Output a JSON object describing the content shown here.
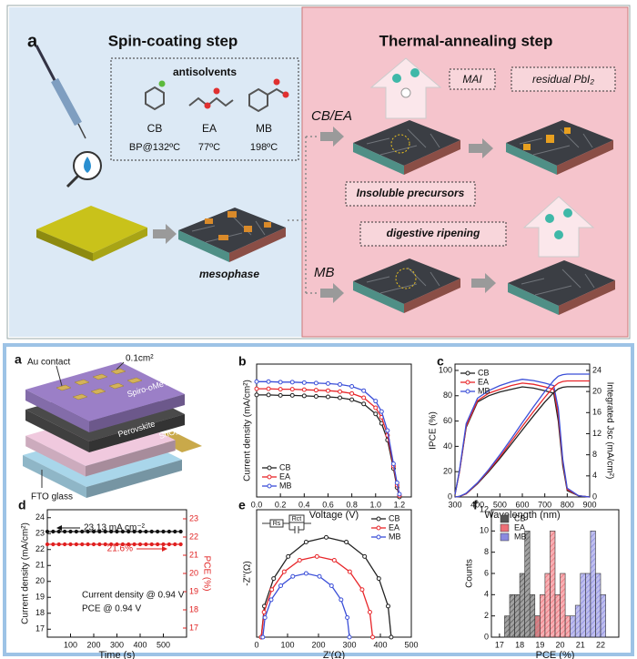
{
  "schematic": {
    "panel": "a",
    "left_title": "Spin-coating step",
    "right_title": "Thermal-annealing step",
    "antisolvents": {
      "title": "antisolvents",
      "names": [
        "CB",
        "EA",
        "MB"
      ],
      "boiling_points": [
        "BP@132ºC",
        "77ºC",
        "198ºC"
      ]
    },
    "mesophase": "mesophase",
    "routes": [
      "CB/EA",
      "MB"
    ],
    "labels": {
      "mai": "MAI",
      "residual": "residual PbI₂",
      "insoluble": "Insoluble precursors",
      "ripening": "digestive ripening"
    }
  },
  "device": {
    "panel": "a",
    "labels": [
      "Au contact",
      "0.1cm²",
      "Spiro-oMeTAD",
      "Perovskite",
      "SnO₂",
      "FTO glass"
    ]
  },
  "chart_data": [
    {
      "panel": "b",
      "type": "line",
      "marker": "circle",
      "xlabel": "Voltage (V)",
      "ylabel": "Current density (mA/cm²)",
      "x": [
        0,
        0.1,
        0.2,
        0.3,
        0.4,
        0.5,
        0.6,
        0.7,
        0.8,
        0.9,
        1.0,
        1.05,
        1.1,
        1.15,
        1.18,
        1.2
      ],
      "xlim": [
        0,
        1.3
      ],
      "xticks": [
        {
          "value": 0,
          "label": "0.0"
        },
        0.2,
        0.4,
        0.6,
        0.8,
        {
          "value": 1,
          "label": "1.0"
        },
        1.2
      ],
      "ylim": [
        0,
        28
      ],
      "legend": "lower left",
      "series": [
        {
          "name": "CB",
          "color": "#222222",
          "values": [
            21.5,
            21.5,
            21.4,
            21.4,
            21.3,
            21.2,
            21.1,
            20.9,
            20.5,
            19.6,
            17.5,
            15.5,
            12,
            6,
            2,
            0
          ]
        },
        {
          "name": "EA",
          "color": "#e8262a",
          "values": [
            22.8,
            22.8,
            22.7,
            22.7,
            22.6,
            22.5,
            22.4,
            22.2,
            21.8,
            20.9,
            18.8,
            16.8,
            13,
            6.5,
            2.5,
            0.3
          ]
        },
        {
          "name": "MB",
          "color": "#3b4fd8",
          "values": [
            24.3,
            24.3,
            24.2,
            24.2,
            24.1,
            24.0,
            23.9,
            23.7,
            23.3,
            22.4,
            20.2,
            18,
            14,
            7,
            3,
            0.6
          ]
        }
      ]
    },
    {
      "panel": "c",
      "type": "line",
      "xlabel": "Wavelength (nm)",
      "ylabel": "IPCE (%)",
      "y2label": "Integrated Jsc (mA/cm²)",
      "x": [
        300,
        320,
        350,
        400,
        450,
        500,
        550,
        600,
        650,
        700,
        740,
        760,
        780,
        800,
        850,
        900
      ],
      "xlim": [
        300,
        900
      ],
      "xticks": [
        300,
        400,
        500,
        600,
        700,
        800,
        900
      ],
      "ylim": [
        0,
        105
      ],
      "yticks": [
        0,
        20,
        40,
        60,
        80,
        100
      ],
      "y2lim": [
        0,
        25.2
      ],
      "y2ticks": [
        0,
        4,
        8,
        12,
        16,
        20,
        24
      ],
      "legend": "upper left",
      "series": [
        {
          "name": "CB",
          "color": "#222222",
          "values": [
            2,
            20,
            55,
            75,
            80,
            83,
            85,
            87,
            86,
            84,
            82,
            60,
            25,
            5,
            1,
            0
          ]
        },
        {
          "name": "EA",
          "color": "#e8262a",
          "values": [
            2,
            20,
            56,
            76,
            82,
            85,
            88,
            90,
            89,
            87,
            85,
            65,
            28,
            6,
            1,
            0
          ]
        },
        {
          "name": "MB",
          "color": "#3b4fd8",
          "values": [
            2,
            21,
            58,
            78,
            84,
            88,
            91,
            93,
            92,
            90,
            88,
            70,
            30,
            7,
            1,
            0
          ]
        },
        {
          "color": "#222222",
          "axis": "y2",
          "values": [
            0,
            0.1,
            0.6,
            2.5,
            4.8,
            7.3,
            10,
            12.7,
            15.4,
            18,
            19.8,
            20.5,
            20.8,
            20.9,
            20.9,
            20.9
          ]
        },
        {
          "color": "#e8262a",
          "axis": "y2",
          "values": [
            0,
            0.1,
            0.6,
            2.6,
            5.0,
            7.6,
            10.5,
            13.4,
            16.2,
            18.9,
            20.9,
            21.6,
            21.9,
            22.0,
            22.0,
            22.0
          ]
        },
        {
          "color": "#3b4fd8",
          "axis": "y2",
          "values": [
            0,
            0.1,
            0.7,
            2.7,
            5.2,
            8.0,
            11.0,
            14.1,
            17.1,
            20.0,
            22.1,
            22.9,
            23.2,
            23.3,
            23.3,
            23.3
          ]
        }
      ]
    },
    {
      "panel": "d",
      "type": "line",
      "marker": "circle",
      "xlabel": "Time (s)",
      "ylabel": "Current density (mA/cm²)",
      "y2label": "PCE (%)",
      "x": [
        0,
        25,
        50,
        75,
        100,
        125,
        150,
        175,
        200,
        225,
        250,
        275,
        300,
        325,
        350,
        375,
        400,
        425,
        450,
        475,
        500,
        525,
        550,
        575
      ],
      "xlim": [
        0,
        600
      ],
      "xticks": [
        100,
        200,
        300,
        400,
        500
      ],
      "ylim": [
        16.5,
        24.5
      ],
      "yticks": [
        17,
        18,
        19,
        20,
        21,
        22,
        23,
        24
      ],
      "y2lim": [
        16.5,
        23.5
      ],
      "y2ticks": [
        17,
        18,
        19,
        20,
        21,
        22,
        23
      ],
      "series": [
        {
          "color": "#111111",
          "values": [
            23.13,
            23.13,
            23.13,
            23.13,
            23.13,
            23.13,
            23.13,
            23.13,
            23.13,
            23.13,
            23.13,
            23.13,
            23.13,
            23.13,
            23.13,
            23.13,
            23.13,
            23.13,
            23.13,
            23.13,
            23.13,
            23.13,
            23.13,
            23.13
          ]
        },
        {
          "color": "#e02020",
          "axis": "y2",
          "values": [
            21.6,
            21.6,
            21.6,
            21.6,
            21.6,
            21.6,
            21.6,
            21.6,
            21.6,
            21.6,
            21.6,
            21.6,
            21.6,
            21.6,
            21.6,
            21.6,
            21.6,
            21.6,
            21.6,
            21.6,
            21.6,
            21.6,
            21.6,
            21.6
          ]
        }
      ],
      "annotations": [
        {
          "text": "23.13 mA cm⁻²",
          "color": "#111111"
        },
        {
          "text": "21.6%",
          "color": "#e02020"
        },
        {
          "text": "Current density @ 0.94 V",
          "color": "#111111"
        },
        {
          "text": "PCE @ 0.94 V",
          "color": "#111111"
        }
      ]
    },
    {
      "panel": "e",
      "type": "scatter",
      "marker": "circle",
      "xlabel": "Z'(Ω)",
      "ylabel": "-Z''(Ω)",
      "xlim": [
        0,
        500
      ],
      "xticks": [
        0,
        100,
        200,
        300,
        400,
        500
      ],
      "ylim": [
        0,
        300
      ],
      "legend": "upper right",
      "inset": [
        "Rs",
        "Rct"
      ],
      "series": [
        {
          "name": "CB",
          "color": "#222222",
          "x": [
            15,
            25,
            55,
            102,
            160,
            225,
            290,
            349,
            395,
            425,
            435
          ],
          "values": [
            0,
            73,
            138,
            190,
            224,
            235,
            224,
            190,
            138,
            73,
            0
          ]
        },
        {
          "name": "EA",
          "color": "#e8262a",
          "x": [
            15,
            24,
            49,
            89,
            139,
            195,
            251,
            301,
            341,
            366,
            375
          ],
          "values": [
            0,
            59,
            112,
            154,
            181,
            190,
            181,
            154,
            112,
            59,
            0
          ]
        },
        {
          "name": "MB",
          "color": "#3b4fd8",
          "x": [
            20,
            27,
            47,
            78,
            117,
            160,
            203,
            242,
            273,
            293,
            300
          ],
          "values": [
            0,
            46,
            88,
            121,
            143,
            150,
            143,
            121,
            88,
            46,
            0
          ]
        }
      ]
    },
    {
      "panel": "f",
      "type": "histogram",
      "xlabel": "PCE (%)",
      "ylabel": "Counts",
      "xlim": [
        16.6,
        22.9
      ],
      "xticks": [
        17,
        18,
        19,
        20,
        21,
        22
      ],
      "ylim": [
        0,
        12
      ],
      "yticks": [
        0,
        2,
        4,
        6,
        8,
        10,
        12
      ],
      "legend": "upper left",
      "series": [
        {
          "name": "CB",
          "color": "#555555",
          "bins": [
            17.25,
            17.5,
            17.75,
            18,
            18.25,
            18.5,
            18.75,
            19
          ],
          "values": [
            2,
            4,
            4,
            6,
            10,
            4,
            2
          ]
        },
        {
          "name": "EA",
          "color": "#ee6f77",
          "bins": [
            18.75,
            19,
            19.25,
            19.5,
            19.75,
            20,
            20.25,
            20.5
          ],
          "values": [
            2,
            4,
            6,
            10,
            4,
            6,
            2
          ]
        },
        {
          "name": "MB",
          "color": "#8a8ae0",
          "bins": [
            20.5,
            20.75,
            21,
            21.25,
            21.5,
            21.75,
            22,
            22.25
          ],
          "values": [
            2,
            3,
            6,
            6,
            10,
            6,
            4
          ]
        }
      ]
    }
  ]
}
